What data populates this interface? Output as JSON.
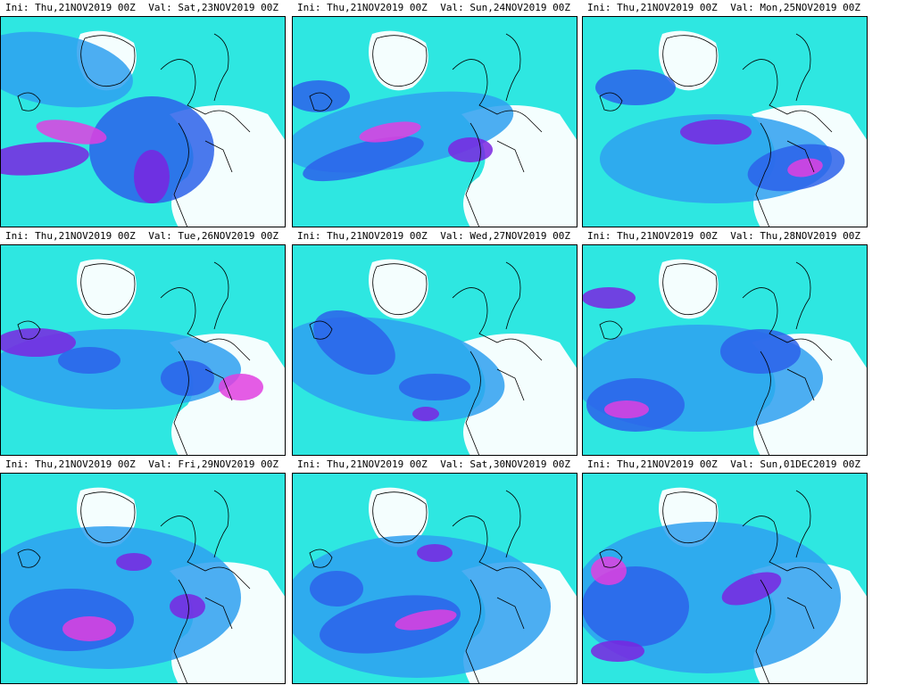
{
  "panels": [
    {
      "ini": "Ini: Thu,21NOV2019 00Z",
      "val": "Val: Sat,23NOV2019 00Z"
    },
    {
      "ini": "Ini: Thu,21NOV2019 00Z",
      "val": "Val: Sun,24NOV2019 00Z"
    },
    {
      "ini": "Ini: Thu,21NOV2019 00Z",
      "val": "Val: Mon,25NOV2019 00Z"
    },
    {
      "ini": "Ini: Thu,21NOV2019 00Z",
      "val": "Val: Tue,26NOV2019 00Z"
    },
    {
      "ini": "Ini: Thu,21NOV2019 00Z",
      "val": "Val: Wed,27NOV2019 00Z"
    },
    {
      "ini": "Ini: Thu,21NOV2019 00Z",
      "val": "Val: Thu,28NOV2019 00Z"
    },
    {
      "ini": "Ini: Thu,21NOV2019 00Z",
      "val": "Val: Fri,29NOV2019 00Z"
    },
    {
      "ini": "Ini: Thu,21NOV2019 00Z",
      "val": "Val: Sat,30NOV2019 00Z"
    },
    {
      "ini": "Ini: Thu,21NOV2019 00Z",
      "val": "Val: Sun,01DEC2019 00Z"
    }
  ],
  "colors": {
    "background": "#ffffff",
    "teal": "#33ffc8",
    "cyan": "#2ad4f5",
    "light_blue": "#2ea0f0",
    "blue": "#2b62ea",
    "dark_blue": "#2a2bd8",
    "violet": "#7a25e0",
    "magenta": "#e040e0",
    "coast": "#000000"
  }
}
